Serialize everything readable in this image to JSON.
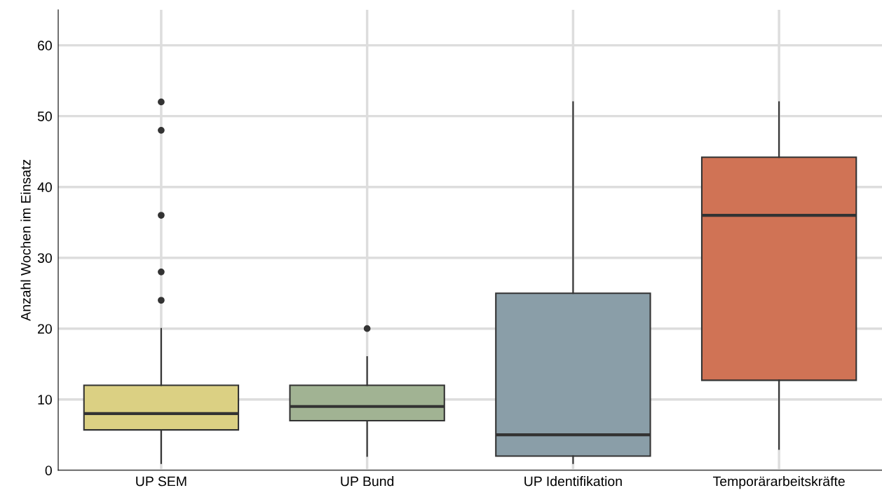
{
  "chart_data": {
    "type": "box",
    "ylabel": "Anzahl Wochen im Einsatz",
    "categories": [
      "UP SEM",
      "UP Bund",
      "UP Identifikation",
      "Temporärarbeitskräfte"
    ],
    "colors": [
      "#dbd083",
      "#a1b393",
      "#8a9ea8",
      "#d07355"
    ],
    "boxes": [
      {
        "low": 1,
        "q1": 5.7,
        "median": 8,
        "q3": 12,
        "high": 20,
        "outliers": [
          24,
          28,
          36,
          48,
          52
        ]
      },
      {
        "low": 2,
        "q1": 7,
        "median": 9,
        "q3": 12,
        "high": 16,
        "outliers": [
          20
        ]
      },
      {
        "low": 1,
        "q1": 2,
        "median": 5,
        "q3": 25,
        "high": 52
      },
      {
        "low": 3,
        "q1": 12.7,
        "median": 36,
        "q3": 44.2,
        "high": 52
      }
    ],
    "ylim": [
      0,
      65
    ],
    "yticks": [
      0,
      10,
      20,
      30,
      40,
      50,
      60
    ],
    "grid": true
  }
}
